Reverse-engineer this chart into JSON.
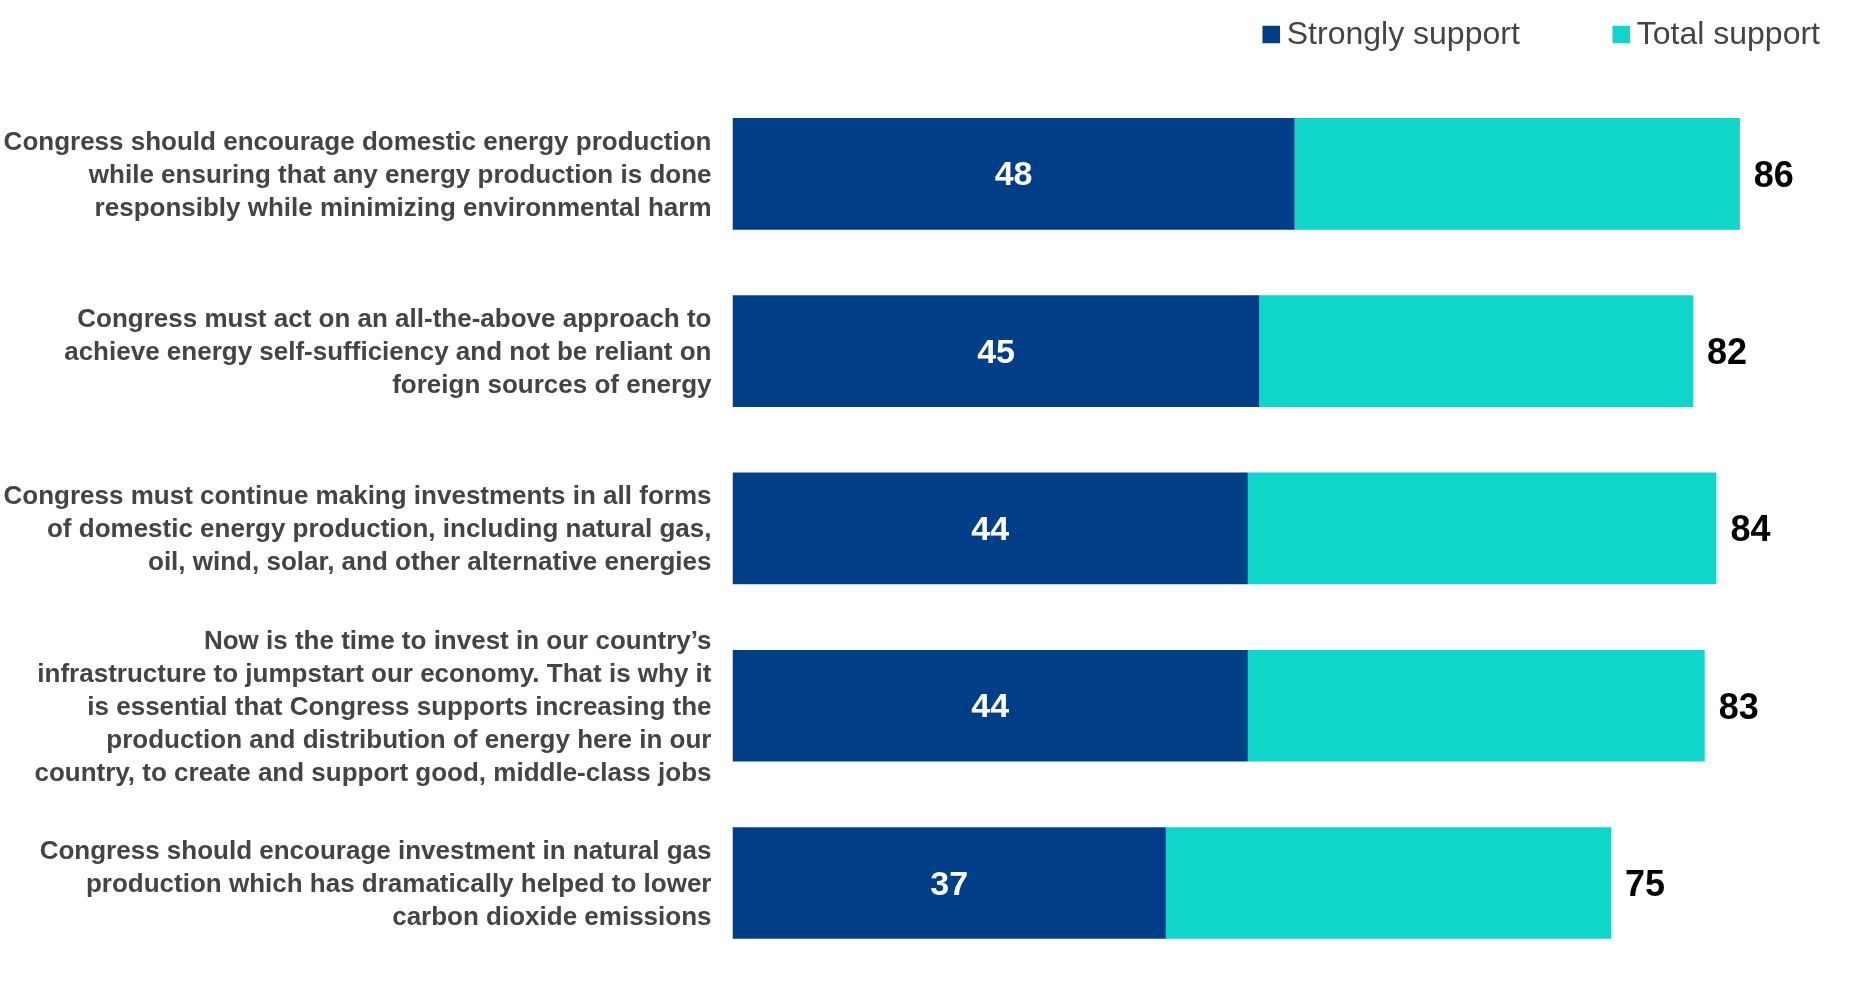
{
  "chart_data": {
    "type": "bar",
    "orientation": "horizontal",
    "stacked": true,
    "categories": [
      "Congress should encourage domestic energy production while ensuring that any energy production is done responsibly while minimizing environmental harm",
      "Congress must act on an all-the-above approach to achieve energy self-sufficiency and not be reliant on foreign sources of energy",
      "Congress must continue making investments in all forms of domestic energy production, including natural gas, oil, wind, solar, and other alternative energies",
      "Now is the time to invest in our country’s infrastructure to jumpstart our economy. That is why it is essential that Congress supports increasing the production and distribution of energy here in our country, to create and support good, middle-class jobs",
      "Congress should encourage investment in natural gas production which has dramatically helped to lower carbon dioxide emissions"
    ],
    "series": [
      {
        "name": "Strongly support",
        "color": "#003f87",
        "values": [
          48,
          45,
          44,
          44,
          37
        ],
        "value_labels": [
          "48",
          "45",
          "44",
          "44",
          "37"
        ]
      },
      {
        "name": "Total support",
        "color": "#10d5c9",
        "values": [
          38,
          37,
          40,
          39,
          38
        ]
      }
    ],
    "totals": [
      "86",
      "82",
      "84",
      "83",
      "75"
    ],
    "tick_labels": "y",
    "legend": "top right"
  }
}
